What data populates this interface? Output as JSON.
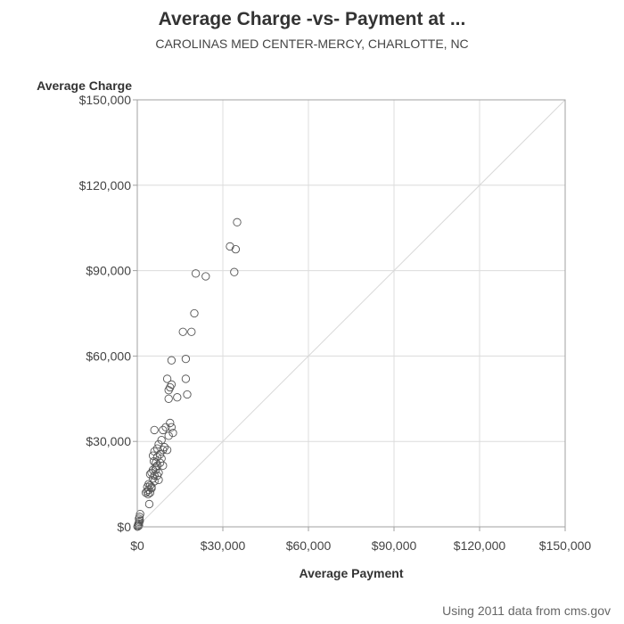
{
  "chart_data": {
    "type": "scatter",
    "title": "Average Charge -vs- Payment at ...",
    "subtitle": "CAROLINAS MED CENTER-MERCY, CHARLOTTE, NC",
    "xlabel": "Average Payment",
    "ylabel": "Average Charge",
    "footnote": "Using 2011 data from cms.gov",
    "xlim": [
      0,
      150000
    ],
    "ylim": [
      0,
      150000
    ],
    "x_ticks": [
      0,
      30000,
      60000,
      90000,
      120000,
      150000
    ],
    "x_tick_labels": [
      "$0",
      "$30,000",
      "$60,000",
      "$90,000",
      "$120,000",
      "$150,000"
    ],
    "y_ticks": [
      0,
      30000,
      60000,
      90000,
      120000,
      150000
    ],
    "y_tick_labels": [
      "$0",
      "$30,000",
      "$60,000",
      "$90,000",
      "$120,000",
      "$150,000"
    ],
    "grid": true,
    "reference_line": "y = x",
    "colors": {
      "marker": "#555555",
      "grid": "#dcdcdc",
      "frame": "#a0a0a0",
      "diagonal": "#d8d8d8"
    },
    "points": [
      [
        35000,
        107000
      ],
      [
        32500,
        98500
      ],
      [
        34500,
        97500
      ],
      [
        34000,
        89500
      ],
      [
        20500,
        89000
      ],
      [
        24000,
        88000
      ],
      [
        20000,
        75000
      ],
      [
        16000,
        68500
      ],
      [
        19000,
        68500
      ],
      [
        12000,
        58500
      ],
      [
        17000,
        59000
      ],
      [
        10500,
        52000
      ],
      [
        12000,
        50000
      ],
      [
        17000,
        52000
      ],
      [
        11000,
        48000
      ],
      [
        11500,
        49000
      ],
      [
        14000,
        45500
      ],
      [
        17500,
        46500
      ],
      [
        11000,
        45000
      ],
      [
        6000,
        34000
      ],
      [
        9000,
        34000
      ],
      [
        10000,
        35000
      ],
      [
        11500,
        36500
      ],
      [
        12000,
        35000
      ],
      [
        12500,
        33000
      ],
      [
        11000,
        32000
      ],
      [
        8500,
        30500
      ],
      [
        7500,
        29000
      ],
      [
        9000,
        27000
      ],
      [
        9500,
        28000
      ],
      [
        10500,
        27000
      ],
      [
        7000,
        27500
      ],
      [
        8000,
        25500
      ],
      [
        6000,
        26500
      ],
      [
        5500,
        25000
      ],
      [
        7000,
        24500
      ],
      [
        8500,
        24000
      ],
      [
        9000,
        21500
      ],
      [
        6500,
        22500
      ],
      [
        7000,
        21500
      ],
      [
        5500,
        20000
      ],
      [
        6500,
        20000
      ],
      [
        7500,
        19000
      ],
      [
        4500,
        18500
      ],
      [
        5000,
        19000
      ],
      [
        6000,
        18000
      ],
      [
        7000,
        18000
      ],
      [
        5500,
        17000
      ],
      [
        6000,
        16000
      ],
      [
        7500,
        16500
      ],
      [
        4000,
        15000
      ],
      [
        4500,
        14500
      ],
      [
        5000,
        14000
      ],
      [
        3500,
        14000
      ],
      [
        4000,
        13000
      ],
      [
        3500,
        12500
      ],
      [
        4500,
        12000
      ],
      [
        5000,
        13500
      ],
      [
        3000,
        12000
      ],
      [
        3800,
        11500
      ],
      [
        6500,
        21000
      ],
      [
        5800,
        23000
      ],
      [
        8000,
        22500
      ],
      [
        4200,
        8000
      ],
      [
        1000,
        4500
      ],
      [
        800,
        3500
      ],
      [
        600,
        2800
      ],
      [
        900,
        2200
      ],
      [
        700,
        1700
      ],
      [
        500,
        1200
      ],
      [
        300,
        800
      ],
      [
        600,
        500
      ],
      [
        400,
        300
      ],
      [
        200,
        200
      ],
      [
        100,
        100
      ]
    ]
  }
}
